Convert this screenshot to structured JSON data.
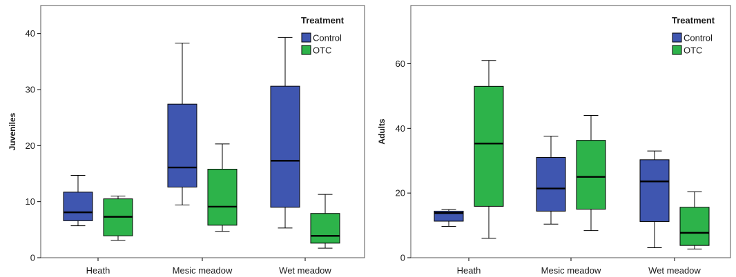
{
  "colors": {
    "Control": "#3f56b0",
    "OTC": "#2db34a",
    "frame": "#555555",
    "line": "#000000"
  },
  "chart_data": [
    {
      "type": "boxplot",
      "ylabel": "Juveniles",
      "xlabel": "",
      "ylim": [
        0,
        45
      ],
      "yticks": [
        0,
        10,
        20,
        30,
        40
      ],
      "categories": [
        "Heath",
        "Mesic meadow",
        "Wet meadow"
      ],
      "legend": {
        "title": "Treatment",
        "position": "top-right",
        "entries": [
          "Control",
          "OTC"
        ]
      },
      "series": [
        {
          "name": "Control",
          "boxes": [
            {
              "min": 5.7,
              "q1": 6.6,
              "median": 8.1,
              "q3": 11.7,
              "max": 14.7
            },
            {
              "min": 9.4,
              "q1": 12.6,
              "median": 16.1,
              "q3": 27.4,
              "max": 38.3
            },
            {
              "min": 5.3,
              "q1": 9.0,
              "median": 17.3,
              "q3": 30.6,
              "max": 39.3
            }
          ]
        },
        {
          "name": "OTC",
          "boxes": [
            {
              "min": 3.1,
              "q1": 3.9,
              "median": 7.3,
              "q3": 10.5,
              "max": 11.0
            },
            {
              "min": 4.7,
              "q1": 5.8,
              "median": 9.1,
              "q3": 15.8,
              "max": 20.3
            },
            {
              "min": 1.7,
              "q1": 2.6,
              "median": 3.9,
              "q3": 7.9,
              "max": 11.3
            }
          ]
        }
      ]
    },
    {
      "type": "boxplot",
      "ylabel": "Adults",
      "xlabel": "",
      "ylim": [
        0,
        78
      ],
      "yticks": [
        0,
        20,
        40,
        60
      ],
      "categories": [
        "Heath",
        "Mesic meadow",
        "Wet meadow"
      ],
      "legend": {
        "title": "Treatment",
        "position": "top-right",
        "entries": [
          "Control",
          "OTC"
        ]
      },
      "series": [
        {
          "name": "Control",
          "boxes": [
            {
              "min": 9.7,
              "q1": 11.3,
              "median": 13.8,
              "q3": 14.4,
              "max": 14.9
            },
            {
              "min": 10.4,
              "q1": 14.4,
              "median": 21.4,
              "q3": 31.0,
              "max": 37.6
            },
            {
              "min": 3.1,
              "q1": 11.2,
              "median": 23.6,
              "q3": 30.3,
              "max": 33.0
            }
          ]
        },
        {
          "name": "OTC",
          "boxes": [
            {
              "min": 6.0,
              "q1": 15.9,
              "median": 35.3,
              "q3": 53.0,
              "max": 61.0
            },
            {
              "min": 8.4,
              "q1": 15.0,
              "median": 25.0,
              "q3": 36.3,
              "max": 44.0
            },
            {
              "min": 2.7,
              "q1": 3.8,
              "median": 7.7,
              "q3": 15.6,
              "max": 20.4
            }
          ]
        }
      ]
    }
  ]
}
